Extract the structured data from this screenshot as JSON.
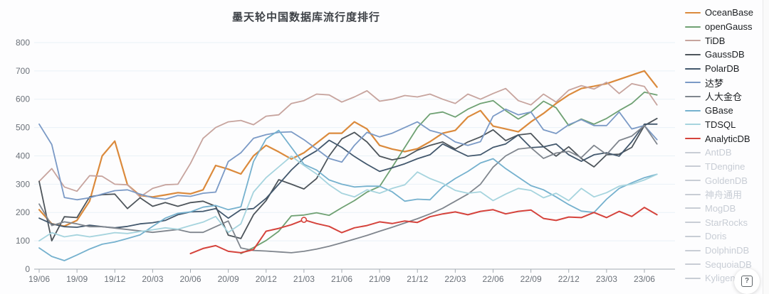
{
  "title": "墨天轮中国数据库流行度排行",
  "help_button": {
    "label": "?"
  },
  "colors": {
    "grid": "#e9f1f7",
    "axis": "#a3aab1",
    "tick_label": "#6b7179",
    "title_text": "#3d4146",
    "legend_inactive": "#c8cdd5"
  },
  "legend": {
    "items": [
      {
        "label": "OceanBase",
        "color": "#db8a3c",
        "active": true
      },
      {
        "label": "openGauss",
        "color": "#6fa173",
        "active": true
      },
      {
        "label": "TiDB",
        "color": "#c7a49e",
        "active": true
      },
      {
        "label": "GaussDB",
        "color": "#4e555b",
        "active": true
      },
      {
        "label": "PolarDB",
        "color": "#43586d",
        "active": true
      },
      {
        "label": "达梦",
        "color": "#7b9ac6",
        "active": true
      },
      {
        "label": "人大金仓",
        "color": "#80868e",
        "active": true
      },
      {
        "label": "GBase",
        "color": "#75b1ce",
        "active": true
      },
      {
        "label": "TDSQL",
        "color": "#a6d4de",
        "active": true
      },
      {
        "label": "AnalyticDB",
        "color": "#d5433c",
        "active": true
      },
      {
        "label": "AntDB",
        "color": "#c8cdd5",
        "active": false
      },
      {
        "label": "TDengine",
        "color": "#c8cdd5",
        "active": false
      },
      {
        "label": "GoldenDB",
        "color": "#c8cdd5",
        "active": false
      },
      {
        "label": "神舟通用",
        "color": "#c8cdd5",
        "active": false
      },
      {
        "label": "MogDB",
        "color": "#c8cdd5",
        "active": false
      },
      {
        "label": "StarRocks",
        "color": "#c8cdd5",
        "active": false
      },
      {
        "label": "Doris",
        "color": "#c8cdd5",
        "active": false
      },
      {
        "label": "DolphinDB",
        "color": "#c8cdd5",
        "active": false
      },
      {
        "label": "SequoiaDB",
        "color": "#c8cdd5",
        "active": false
      },
      {
        "label": "Kyligence",
        "color": "#c8cdd5",
        "active": false
      }
    ]
  },
  "chart_data": {
    "type": "line",
    "title": "墨天轮中国数据库流行度排行",
    "xlabel": "",
    "ylabel": "",
    "ylim": [
      0,
      800
    ],
    "yticks": [
      0,
      100,
      200,
      300,
      400,
      500,
      600,
      700,
      800
    ],
    "grid": true,
    "legend_position": "right",
    "x": [
      "19/06",
      "19/07",
      "19/08",
      "19/09",
      "19/10",
      "19/11",
      "19/12",
      "20/01",
      "20/02",
      "20/03",
      "20/04",
      "20/05",
      "20/06",
      "20/07",
      "20/08",
      "20/09",
      "20/10",
      "20/11",
      "20/12",
      "21/01",
      "21/02",
      "21/03",
      "21/04",
      "21/05",
      "21/06",
      "21/07",
      "21/08",
      "21/09",
      "21/10",
      "21/11",
      "21/12",
      "22/01",
      "22/02",
      "22/03",
      "22/04",
      "22/05",
      "22/06",
      "22/07",
      "22/08",
      "22/09",
      "22/10",
      "22/11",
      "22/12",
      "23/01",
      "23/02",
      "23/03",
      "23/04",
      "23/05",
      "23/06",
      "23/07"
    ],
    "x_tick_labels": [
      "19/06",
      "19/09",
      "19/12",
      "20/03",
      "20/06",
      "20/09",
      "20/12",
      "21/03",
      "21/06",
      "21/09",
      "21/12",
      "22/03",
      "22/06",
      "22/09",
      "22/12",
      "23/03",
      "23/06"
    ],
    "series": [
      {
        "name": "OceanBase",
        "color": "#db8a3c",
        "width": 2.2,
        "values": [
          210,
          160,
          152,
          172,
          240,
          400,
          452,
          298,
          260,
          255,
          262,
          270,
          266,
          280,
          366,
          353,
          336,
          400,
          437,
          414,
          389,
          411,
          445,
          480,
          480,
          520,
          495,
          437,
          424,
          415,
          425,
          450,
          480,
          490,
          537,
          560,
          505,
          495,
          485,
          520,
          550,
          585,
          615,
          638,
          646,
          655,
          670,
          685,
          700,
          643
        ]
      },
      {
        "name": "openGauss",
        "color": "#6fa173",
        "width": 1.8,
        "values": [
          null,
          null,
          null,
          null,
          null,
          null,
          null,
          null,
          null,
          null,
          null,
          null,
          null,
          null,
          null,
          null,
          55,
          76,
          101,
          134,
          188,
          191,
          199,
          190,
          217,
          242,
          272,
          292,
          360,
          430,
          500,
          548,
          555,
          537,
          565,
          585,
          595,
          560,
          530,
          555,
          593,
          570,
          507,
          530,
          512,
          532,
          560,
          585,
          625,
          615
        ]
      },
      {
        "name": "TiDB",
        "color": "#c7a49e",
        "width": 1.8,
        "values": [
          310,
          355,
          290,
          275,
          330,
          328,
          300,
          298,
          255,
          285,
          298,
          300,
          373,
          462,
          500,
          520,
          525,
          510,
          540,
          545,
          585,
          595,
          618,
          615,
          590,
          608,
          630,
          593,
          600,
          613,
          608,
          618,
          600,
          585,
          618,
          600,
          620,
          638,
          595,
          580,
          618,
          590,
          632,
          648,
          636,
          660,
          620,
          655,
          645,
          580
        ]
      },
      {
        "name": "GaussDB",
        "color": "#4e555b",
        "width": 1.8,
        "values": [
          310,
          100,
          185,
          182,
          255,
          263,
          265,
          214,
          252,
          222,
          235,
          222,
          235,
          240,
          222,
          120,
          108,
          192,
          242,
          316,
          300,
          283,
          320,
          400,
          460,
          483,
          449,
          399,
          386,
          395,
          420,
          437,
          449,
          424,
          449,
          467,
          492,
          454,
          474,
          479,
          432,
          399,
          432,
          391,
          361,
          404,
          406,
          430,
          507,
          532
        ]
      },
      {
        "name": "PolarDB",
        "color": "#43586d",
        "width": 1.8,
        "values": [
          180,
          160,
          150,
          148,
          155,
          150,
          146,
          151,
          160,
          164,
          172,
          192,
          202,
          204,
          214,
          180,
          210,
          214,
          250,
          300,
          350,
          392,
          418,
          455,
          430,
          398,
          370,
          345,
          358,
          372,
          390,
          404,
          442,
          420,
          399,
          404,
          430,
          442,
          474,
          429,
          432,
          442,
          404,
          381,
          404,
          411,
          399,
          450,
          512,
          512
        ]
      },
      {
        "name": "达梦",
        "color": "#7b9ac6",
        "width": 1.8,
        "values": [
          512,
          440,
          253,
          245,
          252,
          265,
          277,
          280,
          265,
          252,
          247,
          260,
          257,
          268,
          272,
          380,
          411,
          462,
          475,
          483,
          485,
          457,
          424,
          391,
          378,
          437,
          483,
          467,
          480,
          500,
          520,
          490,
          478,
          449,
          437,
          450,
          540,
          565,
          545,
          555,
          492,
          479,
          510,
          528,
          507,
          507,
          555,
          495,
          507,
          457
        ]
      },
      {
        "name": "人大金仓",
        "color": "#80868e",
        "width": 1.8,
        "values": [
          230,
          154,
          167,
          160,
          150,
          150,
          145,
          140,
          135,
          130,
          135,
          140,
          130,
          130,
          150,
          170,
          75,
          66,
          64,
          61,
          58,
          63,
          71,
          81,
          93,
          106,
          119,
          134,
          148,
          163,
          178,
          195,
          215,
          240,
          265,
          300,
          360,
          400,
          424,
          429,
          391,
          410,
          416,
          394,
          437,
          405,
          454,
          470,
          507,
          442
        ]
      },
      {
        "name": "GBase",
        "color": "#75b1ce",
        "width": 1.8,
        "values": [
          75,
          45,
          30,
          50,
          71,
          88,
          96,
          108,
          121,
          151,
          180,
          197,
          202,
          219,
          225,
          210,
          220,
          380,
          460,
          490,
          430,
          370,
          350,
          315,
          300,
          290,
          293,
          293,
          273,
          240,
          247,
          245,
          290,
          320,
          345,
          375,
          390,
          355,
          325,
          295,
          280,
          255,
          228,
          205,
          200,
          247,
          285,
          305,
          323,
          335
        ]
      },
      {
        "name": "TDSQL",
        "color": "#a6d4de",
        "width": 1.8,
        "values": [
          100,
          129,
          114,
          121,
          114,
          121,
          129,
          126,
          133,
          139,
          146,
          141,
          154,
          166,
          186,
          130,
          160,
          272,
          323,
          361,
          399,
          366,
          336,
          298,
          268,
          255,
          280,
          268,
          285,
          298,
          343,
          320,
          303,
          278,
          268,
          273,
          242,
          265,
          285,
          278,
          252,
          268,
          242,
          285,
          255,
          270,
          293,
          300,
          315,
          335
        ]
      },
      {
        "name": "AnalyticDB",
        "color": "#d5433c",
        "width": 2,
        "values": [
          null,
          null,
          null,
          null,
          null,
          null,
          null,
          null,
          null,
          null,
          null,
          null,
          55,
          73,
          83,
          63,
          58,
          69,
          134,
          144,
          157,
          174,
          161,
          151,
          129,
          146,
          154,
          167,
          161,
          170,
          165,
          185,
          195,
          202,
          192,
          204,
          210,
          195,
          204,
          209,
          179,
          172,
          184,
          182,
          200,
          182,
          204,
          186,
          218,
          192
        ]
      }
    ],
    "highlight_point": {
      "series": "AnalyticDB",
      "x": "21/03",
      "value": 174
    }
  }
}
